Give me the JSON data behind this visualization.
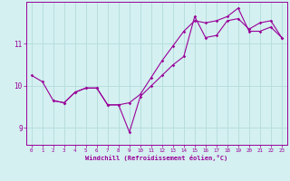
{
  "xlabel": "Windchill (Refroidissement éolien,°C)",
  "background_color": "#d4f0f0",
  "line_color": "#990099",
  "grid_color": "#b8dede",
  "axis_color": "#990099",
  "xlim": [
    -0.5,
    23.5
  ],
  "ylim": [
    8.6,
    12.0
  ],
  "yticks": [
    9,
    10,
    11
  ],
  "xticks": [
    0,
    1,
    2,
    3,
    4,
    5,
    6,
    7,
    8,
    9,
    10,
    11,
    12,
    13,
    14,
    15,
    16,
    17,
    18,
    19,
    20,
    21,
    22,
    23
  ],
  "line1_x": [
    0,
    1,
    2,
    3,
    4,
    5,
    6,
    7,
    8,
    9,
    10,
    11,
    12,
    13,
    14,
    15,
    16,
    17,
    18,
    19,
    20,
    21,
    22,
    23
  ],
  "line1_y": [
    10.25,
    10.1,
    9.65,
    9.6,
    9.85,
    9.95,
    9.95,
    9.55,
    9.55,
    8.9,
    9.75,
    10.0,
    10.25,
    10.5,
    10.7,
    11.65,
    11.15,
    11.2,
    11.55,
    11.6,
    11.35,
    11.5,
    11.55,
    11.15
  ],
  "line2_x": [
    2,
    3,
    4,
    5,
    6,
    7,
    8,
    9,
    10,
    11,
    12,
    13,
    14,
    15,
    16,
    17,
    18,
    19,
    20,
    21,
    22,
    23
  ],
  "line2_y": [
    9.65,
    9.6,
    9.85,
    9.95,
    9.95,
    9.55,
    9.55,
    9.6,
    9.8,
    10.2,
    10.6,
    10.95,
    11.3,
    11.55,
    11.5,
    11.55,
    11.65,
    11.85,
    11.3,
    11.3,
    11.4,
    11.15
  ]
}
